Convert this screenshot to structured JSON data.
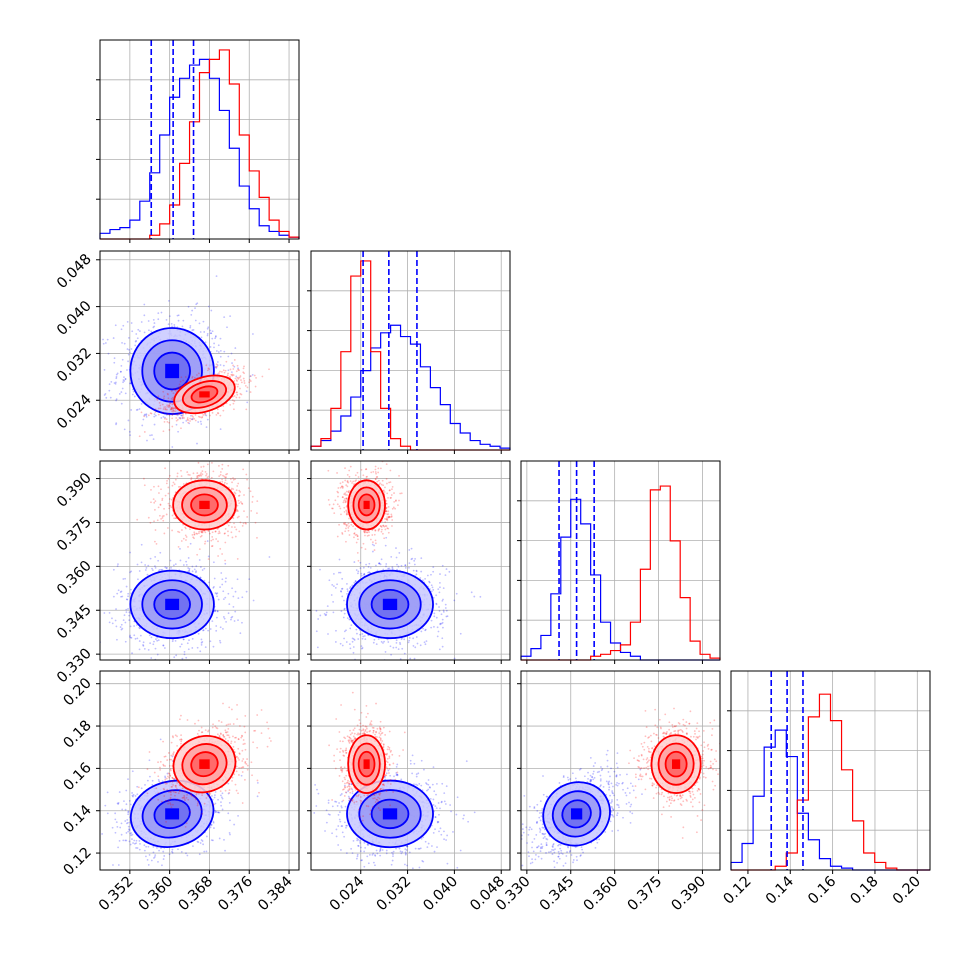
{
  "chart_data": {
    "type": "corner",
    "title": "",
    "parameters": [
      {
        "index": 0,
        "range": [
          0.346,
          0.386
        ],
        "ticks": [
          "0.352",
          "0.360",
          "0.368",
          "0.376",
          "0.384"
        ],
        "tick_values": [
          0.352,
          0.36,
          0.368,
          0.376,
          0.384
        ]
      },
      {
        "index": 1,
        "range": [
          0.0155,
          0.0495
        ],
        "ticks": [
          "0.024",
          "0.032",
          "0.040",
          "0.048"
        ],
        "tick_values": [
          0.024,
          0.032,
          0.04,
          0.048
        ]
      },
      {
        "index": 2,
        "range": [
          0.328,
          0.396
        ],
        "ticks": [
          "0.330",
          "0.345",
          "0.360",
          "0.375",
          "0.390"
        ],
        "tick_values": [
          0.33,
          0.345,
          0.36,
          0.375,
          0.39
        ]
      },
      {
        "index": 3,
        "range": [
          0.112,
          0.206
        ],
        "ticks": [
          "0.12",
          "0.14",
          "0.16",
          "0.18",
          "0.20"
        ],
        "tick_values": [
          0.12,
          0.14,
          0.16,
          0.18,
          0.2
        ]
      }
    ],
    "series": [
      {
        "color": "#0000ff",
        "means": [
          0.3605,
          0.029,
          0.347,
          0.1385
        ],
        "sigmas": [
          0.004,
          0.0035,
          0.0055,
          0.0075
        ],
        "quantile_lines": [
          [
            0.3563,
            0.3607,
            0.3648
          ],
          [
            0.0244,
            0.0288,
            0.0336
          ],
          [
            0.341,
            0.347,
            0.353
          ],
          [
            0.131,
            0.1385,
            0.146
          ]
        ],
        "covariance_tilt": {
          "0-3": 0.3,
          "2-3": 0.5
        }
      },
      {
        "color": "#ff0000",
        "means": [
          0.367,
          0.025,
          0.381,
          0.162
        ],
        "sigmas": [
          0.003,
          0.0015,
          0.004,
          0.0065
        ],
        "quantile_lines": [],
        "covariance_tilt": {
          "0-1": 0.55,
          "0-3": 0.4
        }
      }
    ],
    "histograms": [
      {
        "param": 0,
        "blue": [
          0.03,
          0.05,
          0.06,
          0.1,
          0.2,
          0.35,
          0.55,
          0.75,
          0.85,
          0.92,
          0.95,
          0.85,
          0.68,
          0.48,
          0.28,
          0.16,
          0.07,
          0.04,
          0.02,
          0.01
        ],
        "red": [
          0,
          0,
          0,
          0,
          0,
          0.02,
          0.08,
          0.18,
          0.4,
          0.62,
          0.88,
          0.95,
          1.0,
          0.82,
          0.55,
          0.36,
          0.22,
          0.1,
          0.04,
          0.01
        ]
      },
      {
        "param": 1,
        "blue": [
          0.02,
          0.05,
          0.1,
          0.18,
          0.28,
          0.42,
          0.54,
          0.62,
          0.66,
          0.6,
          0.56,
          0.44,
          0.33,
          0.24,
          0.14,
          0.09,
          0.05,
          0.03,
          0.02,
          0.01
        ],
        "red": [
          0.02,
          0.06,
          0.22,
          0.52,
          0.92,
          1.0,
          0.52,
          0.22,
          0.06,
          0.02,
          0,
          0,
          0,
          0,
          0,
          0,
          0,
          0,
          0,
          0
        ]
      },
      {
        "param": 2,
        "blue": [
          0.02,
          0.06,
          0.13,
          0.35,
          0.65,
          0.85,
          0.72,
          0.45,
          0.2,
          0.09,
          0.04,
          0.02,
          0,
          0,
          0,
          0,
          0,
          0,
          0,
          0
        ],
        "red": [
          0,
          0,
          0,
          0,
          0,
          0,
          0,
          0.02,
          0.03,
          0.05,
          0.08,
          0.2,
          0.48,
          0.9,
          0.92,
          0.63,
          0.33,
          0.1,
          0.03,
          0.01
        ],
        "bins_override": 20
      },
      {
        "param": 3,
        "blue": [
          0.04,
          0.14,
          0.39,
          0.65,
          0.74,
          0.6,
          0.3,
          0.16,
          0.06,
          0.02,
          0.01,
          0,
          0,
          0,
          0,
          0,
          0,
          0
        ],
        "red": [
          0,
          0,
          0,
          0,
          0.02,
          0.09,
          0.37,
          0.81,
          0.93,
          0.79,
          0.53,
          0.26,
          0.09,
          0.04,
          0.01,
          0,
          0,
          0
        ]
      }
    ],
    "xlabel": "",
    "ylabel": "",
    "grid": true,
    "legend": "none"
  }
}
